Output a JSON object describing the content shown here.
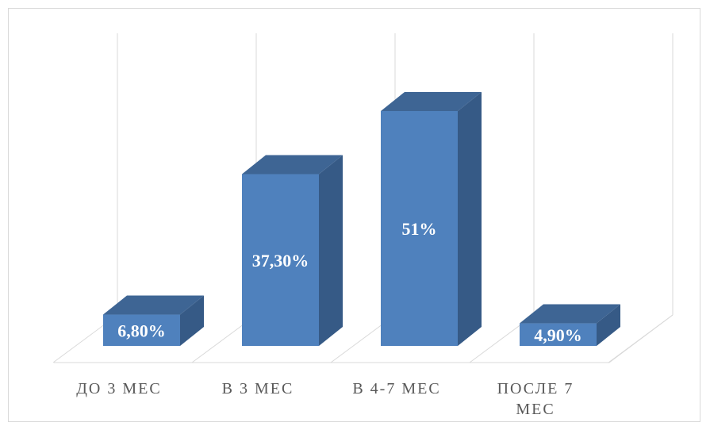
{
  "chart_data": {
    "type": "bar",
    "categories": [
      [
        "ДО 3 МЕС"
      ],
      [
        "В 3 МЕС"
      ],
      [
        "В 4-7 МЕС"
      ],
      [
        "ПОСЛЕ 7",
        "МЕС"
      ]
    ],
    "values": [
      6.8,
      37.3,
      51,
      4.9
    ],
    "data_labels": [
      "6,80%",
      "37,30%",
      "51%",
      "4,90%"
    ],
    "grid": true,
    "legend": "none",
    "three_d": true,
    "colors": {
      "front": "#4f81bd",
      "side": "#365a86",
      "top": "#3e6594",
      "grid": "#d9d9d9",
      "text": "#595959"
    }
  }
}
